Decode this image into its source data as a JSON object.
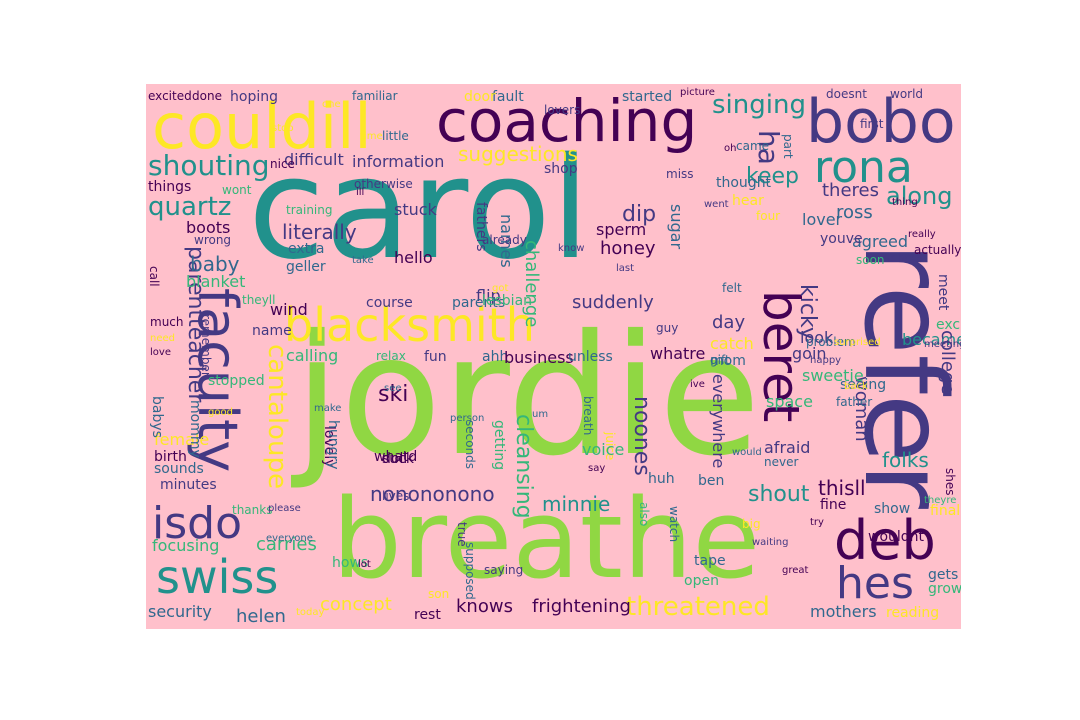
{
  "wordcloud": {
    "background": "#ffc0cb",
    "palette": {
      "p": "#440154",
      "i": "#443983",
      "b": "#31688e",
      "t": "#21918c",
      "g": "#35b779",
      "l": "#90d743",
      "y": "#fde725"
    },
    "words": [
      {
        "text": "carol",
        "color": "t"
      },
      {
        "text": "jordie",
        "color": "l"
      },
      {
        "text": "refer",
        "color": "i"
      },
      {
        "text": "breathe",
        "color": "l"
      },
      {
        "text": "couldill",
        "color": "y"
      },
      {
        "text": "coaching",
        "color": "p"
      },
      {
        "text": "bobo",
        "color": "i"
      },
      {
        "text": "rona",
        "color": "t"
      },
      {
        "text": "blacksmith",
        "color": "y"
      },
      {
        "text": "beret",
        "color": "p"
      },
      {
        "text": "faculty",
        "color": "i"
      },
      {
        "text": "swiss",
        "color": "t"
      },
      {
        "text": "deb",
        "color": "p"
      },
      {
        "text": "hes",
        "color": "i"
      },
      {
        "text": "isdo",
        "color": "i"
      },
      {
        "text": "cantaloupe",
        "color": "y"
      },
      {
        "text": "threatened",
        "color": "y"
      },
      {
        "text": "singing",
        "color": "t"
      },
      {
        "text": "shouting",
        "color": "t"
      },
      {
        "text": "quartz",
        "color": "t"
      },
      {
        "text": "suggestions",
        "color": "y"
      },
      {
        "text": "ha",
        "color": "i"
      },
      {
        "text": "keep",
        "color": "t"
      },
      {
        "text": "along",
        "color": "t"
      },
      {
        "text": "kicky",
        "color": "i"
      },
      {
        "text": "literally",
        "color": "i"
      },
      {
        "text": "parentteacher",
        "color": "i"
      },
      {
        "text": "cleansing",
        "color": "g"
      },
      {
        "text": "nonononono",
        "color": "i"
      },
      {
        "text": "minnie",
        "color": "t"
      },
      {
        "text": "shout",
        "color": "t"
      },
      {
        "text": "knows",
        "color": "p"
      },
      {
        "text": "frightening",
        "color": "p"
      },
      {
        "text": "concept",
        "color": "y"
      },
      {
        "text": "noones",
        "color": "i"
      },
      {
        "text": "suddenly",
        "color": "i"
      },
      {
        "text": "day",
        "color": "i"
      },
      {
        "text": "folks",
        "color": "t"
      },
      {
        "text": "became",
        "color": "t"
      },
      {
        "text": "ski",
        "color": "p"
      },
      {
        "text": "dip",
        "color": "i"
      },
      {
        "text": "honey",
        "color": "p"
      },
      {
        "text": "baby",
        "color": "b"
      },
      {
        "text": "carries",
        "color": "g"
      },
      {
        "text": "focusing",
        "color": "g"
      },
      {
        "text": "helen",
        "color": "b"
      },
      {
        "text": "security",
        "color": "b"
      },
      {
        "text": "mothers",
        "color": "b"
      },
      {
        "text": "thisll",
        "color": "p"
      },
      {
        "text": "college",
        "color": "i"
      },
      {
        "text": "woman",
        "color": "i"
      },
      {
        "text": "ross",
        "color": "b"
      },
      {
        "text": "agreed",
        "color": "b"
      },
      {
        "text": "lover",
        "color": "b"
      },
      {
        "text": "theres",
        "color": "i"
      },
      {
        "text": "information",
        "color": "i"
      },
      {
        "text": "difficult",
        "color": "i"
      },
      {
        "text": "stuck",
        "color": "i"
      },
      {
        "text": "fathers",
        "color": "i"
      },
      {
        "text": "names",
        "color": "b"
      },
      {
        "text": "challenge",
        "color": "g"
      },
      {
        "text": "sperm",
        "color": "p"
      },
      {
        "text": "sugar",
        "color": "b"
      },
      {
        "text": "flip",
        "color": "i"
      },
      {
        "text": "hello",
        "color": "p"
      },
      {
        "text": "boots",
        "color": "p"
      },
      {
        "text": "extra",
        "color": "b"
      },
      {
        "text": "geller",
        "color": "b"
      },
      {
        "text": "blanket",
        "color": "g"
      },
      {
        "text": "wind",
        "color": "p"
      },
      {
        "text": "course",
        "color": "i"
      },
      {
        "text": "parents",
        "color": "b"
      },
      {
        "text": "lesbian",
        "color": "g"
      },
      {
        "text": "calling",
        "color": "g"
      },
      {
        "text": "fun",
        "color": "i"
      },
      {
        "text": "ahh",
        "color": "b"
      },
      {
        "text": "business",
        "color": "p"
      },
      {
        "text": "unless",
        "color": "b"
      },
      {
        "text": "whatre",
        "color": "p"
      },
      {
        "text": "catch",
        "color": "y"
      },
      {
        "text": "mom",
        "color": "b"
      },
      {
        "text": "goin",
        "color": "i"
      },
      {
        "text": "sweetie",
        "color": "g"
      },
      {
        "text": "look",
        "color": "i"
      },
      {
        "text": "space",
        "color": "g"
      },
      {
        "text": "afraid",
        "color": "i"
      },
      {
        "text": "everywhere",
        "color": "i"
      },
      {
        "text": "ben",
        "color": "b"
      },
      {
        "text": "huh",
        "color": "b"
      },
      {
        "text": "show",
        "color": "b"
      },
      {
        "text": "fine",
        "color": "p"
      },
      {
        "text": "wouldnt",
        "color": "p"
      },
      {
        "text": "gets",
        "color": "b"
      },
      {
        "text": "grow",
        "color": "g"
      },
      {
        "text": "reading",
        "color": "y"
      },
      {
        "text": "finally",
        "color": "y"
      },
      {
        "text": "tape",
        "color": "b"
      },
      {
        "text": "open",
        "color": "g"
      },
      {
        "text": "watch",
        "color": "b"
      },
      {
        "text": "also",
        "color": "g"
      },
      {
        "text": "saying",
        "color": "i"
      },
      {
        "text": "true",
        "color": "i"
      },
      {
        "text": "supposed",
        "color": "b"
      },
      {
        "text": "rest",
        "color": "p"
      },
      {
        "text": "son",
        "color": "y"
      },
      {
        "text": "hows",
        "color": "g"
      },
      {
        "text": "seconds",
        "color": "b"
      },
      {
        "text": "getting",
        "color": "g"
      },
      {
        "text": "breath",
        "color": "b"
      },
      {
        "text": "juice",
        "color": "y"
      },
      {
        "text": "voice",
        "color": "g"
      },
      {
        "text": "suck",
        "color": "p"
      },
      {
        "text": "doll",
        "color": "p"
      },
      {
        "text": "whatd",
        "color": "p"
      },
      {
        "text": "lovely",
        "color": "p"
      },
      {
        "text": "hungry",
        "color": "b"
      },
      {
        "text": "lives",
        "color": "i"
      },
      {
        "text": "minutes",
        "color": "i"
      },
      {
        "text": "sounds",
        "color": "b"
      },
      {
        "text": "birth",
        "color": "p"
      },
      {
        "text": "female",
        "color": "y"
      },
      {
        "text": "babys",
        "color": "b"
      },
      {
        "text": "mommy",
        "color": "b"
      },
      {
        "text": "stopped",
        "color": "g"
      },
      {
        "text": "name",
        "color": "i"
      },
      {
        "text": "relax",
        "color": "g"
      },
      {
        "text": "person",
        "color": "b"
      },
      {
        "text": "guy",
        "color": "i"
      },
      {
        "text": "gift",
        "color": "b"
      },
      {
        "text": "seeing",
        "color": "b"
      },
      {
        "text": "father",
        "color": "b"
      },
      {
        "text": "never",
        "color": "b"
      },
      {
        "text": "meet",
        "color": "i"
      },
      {
        "text": "exciting",
        "color": "g"
      },
      {
        "text": "soon",
        "color": "g"
      },
      {
        "text": "school",
        "color": "i"
      },
      {
        "text": "youve",
        "color": "i"
      },
      {
        "text": "hear",
        "color": "y"
      },
      {
        "text": "four",
        "color": "y"
      },
      {
        "text": "came",
        "color": "b"
      },
      {
        "text": "part",
        "color": "b"
      },
      {
        "text": "miss",
        "color": "i"
      },
      {
        "text": "shop",
        "color": "i"
      },
      {
        "text": "started",
        "color": "b"
      },
      {
        "text": "lovers",
        "color": "i"
      },
      {
        "text": "fault",
        "color": "b"
      },
      {
        "text": "door",
        "color": "y"
      },
      {
        "text": "familiar",
        "color": "b"
      },
      {
        "text": "hoping",
        "color": "i"
      },
      {
        "text": "done",
        "color": "p"
      },
      {
        "text": "excited",
        "color": "p"
      },
      {
        "text": "doesnt",
        "color": "i"
      },
      {
        "text": "world",
        "color": "i"
      },
      {
        "text": "picture",
        "color": "p"
      },
      {
        "text": "otherwise",
        "color": "i"
      },
      {
        "text": "things",
        "color": "p"
      },
      {
        "text": "wont",
        "color": "g"
      },
      {
        "text": "training",
        "color": "g"
      },
      {
        "text": "wrong",
        "color": "i"
      },
      {
        "text": "theyll",
        "color": "g"
      },
      {
        "text": "remember",
        "color": "i"
      },
      {
        "text": "thanks",
        "color": "g"
      },
      {
        "text": "everyone",
        "color": "b"
      },
      {
        "text": "already",
        "color": "i"
      },
      {
        "text": "know",
        "color": "i"
      },
      {
        "text": "felt",
        "color": "b"
      },
      {
        "text": "last",
        "color": "i"
      },
      {
        "text": "thought",
        "color": "b"
      },
      {
        "text": "problem",
        "color": "b"
      },
      {
        "text": "happy",
        "color": "i"
      },
      {
        "text": "surprised",
        "color": "y"
      },
      {
        "text": "meeting",
        "color": "i"
      },
      {
        "text": "actually",
        "color": "p"
      },
      {
        "text": "thing",
        "color": "p"
      },
      {
        "text": "went",
        "color": "i"
      },
      {
        "text": "first",
        "color": "i"
      },
      {
        "text": "nice",
        "color": "p"
      },
      {
        "text": "call",
        "color": "p"
      },
      {
        "text": "big",
        "color": "y"
      },
      {
        "text": "try",
        "color": "p"
      },
      {
        "text": "waiting",
        "color": "i"
      },
      {
        "text": "great",
        "color": "p"
      },
      {
        "text": "shes",
        "color": "p"
      },
      {
        "text": "theyre",
        "color": "g"
      },
      {
        "text": "today",
        "color": "y"
      },
      {
        "text": "please",
        "color": "i"
      },
      {
        "text": "much",
        "color": "p"
      },
      {
        "text": "need",
        "color": "y"
      },
      {
        "text": "love",
        "color": "p"
      },
      {
        "text": "see",
        "color": "b"
      },
      {
        "text": "um",
        "color": "b"
      },
      {
        "text": "got",
        "color": "y"
      },
      {
        "text": "take",
        "color": "b"
      },
      {
        "text": "little",
        "color": "b"
      },
      {
        "text": "time",
        "color": "y"
      },
      {
        "text": "one",
        "color": "y"
      },
      {
        "text": "ill",
        "color": "p"
      },
      {
        "text": "back",
        "color": "y"
      },
      {
        "text": "say",
        "color": "p"
      },
      {
        "text": "stop",
        "color": "y"
      },
      {
        "text": "ive",
        "color": "p"
      },
      {
        "text": "make",
        "color": "b"
      },
      {
        "text": "good",
        "color": "y"
      },
      {
        "text": "lot",
        "color": "p"
      },
      {
        "text": "would",
        "color": "b"
      },
      {
        "text": "really",
        "color": "p"
      },
      {
        "text": "oh",
        "color": "p"
      },
      {
        "text": "yes",
        "color": "p"
      },
      {
        "text": "still",
        "color": "p"
      },
      {
        "text": "hmm",
        "color": "p"
      },
      {
        "text": "fine",
        "color": "p"
      },
      {
        "text": "away",
        "color": "p"
      }
    ]
  }
}
